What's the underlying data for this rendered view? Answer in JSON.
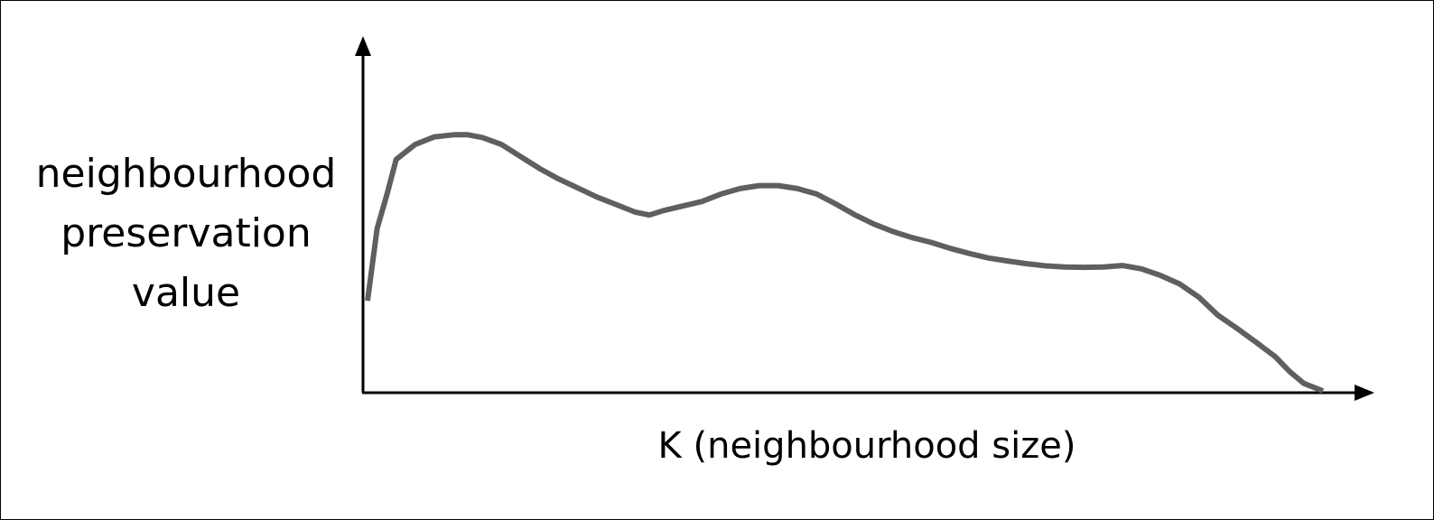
{
  "chart_data": {
    "type": "line",
    "title": "",
    "ylabel_lines": [
      "neighbourhood",
      "preservation",
      "value"
    ],
    "xlabel": "K (neighbourhood size)",
    "axis_ticks": "none",
    "grid": false,
    "line_color": "#5f5f5f",
    "axis_color": "#000000",
    "xlim": [
      0,
      100
    ],
    "ylim": [
      0,
      100
    ],
    "series": [
      {
        "x": [
          0,
          1,
          2,
          3,
          5,
          7,
          9,
          10.5,
          12,
          14,
          16,
          18,
          20,
          22,
          24,
          26,
          28,
          29.5,
          31,
          33,
          35,
          37,
          39,
          41,
          43,
          45,
          47,
          49,
          51,
          53,
          55,
          57,
          59,
          61,
          63,
          65,
          67,
          69,
          71,
          73,
          75,
          77,
          79,
          81,
          83,
          85,
          87,
          89,
          91,
          93,
          95,
          96.5,
          98,
          100
        ],
        "y": [
          30,
          54,
          65,
          77,
          82,
          84.5,
          85.2,
          85.2,
          84.3,
          82,
          78,
          74,
          70.5,
          67.5,
          64.5,
          62,
          59.5,
          58.5,
          60,
          61.5,
          63,
          65.5,
          67.3,
          68.3,
          68.3,
          67.3,
          65.5,
          62.2,
          58.6,
          55.5,
          53,
          51,
          49.4,
          47.4,
          45.7,
          44.2,
          43.2,
          42.3,
          41.6,
          41.2,
          41.1,
          41.2,
          41.7,
          40.6,
          38.4,
          35.6,
          31.2,
          25.2,
          20.8,
          16.2,
          11.4,
          6.5,
          2.5,
          0
        ]
      }
    ]
  }
}
